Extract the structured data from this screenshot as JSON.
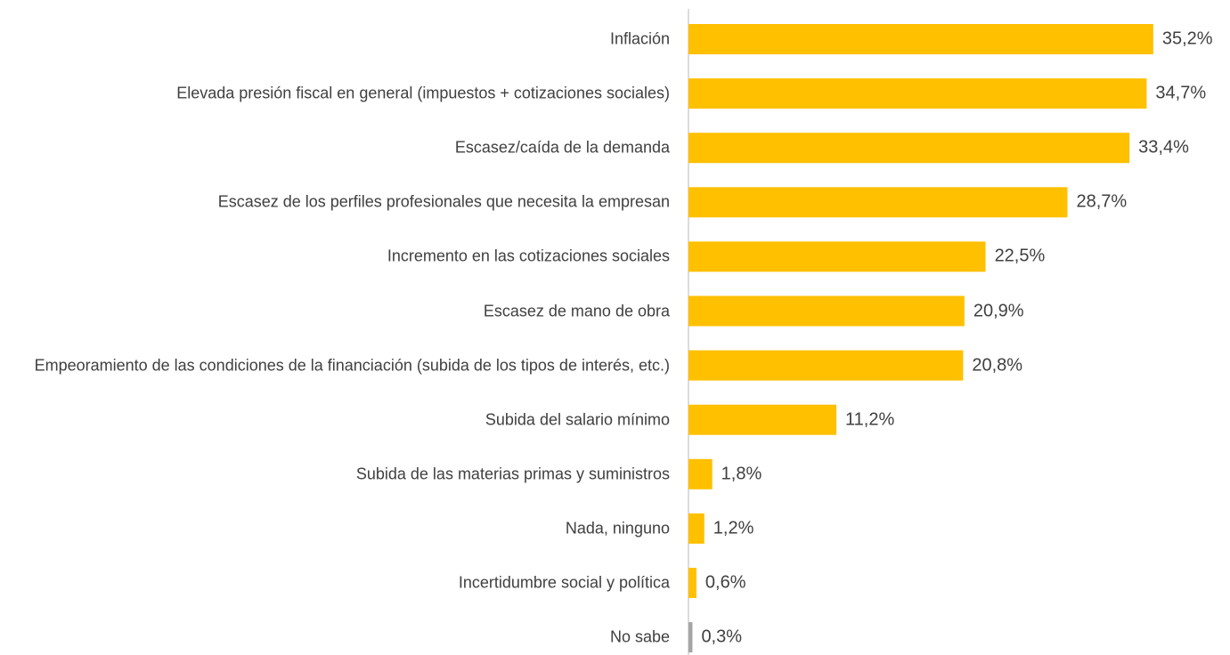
{
  "chart_data": {
    "type": "bar",
    "orientation": "horizontal",
    "categories": [
      "Inflación",
      "Elevada presión fiscal en general (impuestos + cotizaciones sociales)",
      "Escasez/caída de la demanda",
      "Escasez de los perfiles profesionales que necesita la empresan",
      "Incremento en las cotizaciones sociales",
      "Escasez de mano de obra",
      "Empeoramiento de las condiciones de la financiación (subida de los tipos de interés, etc.)",
      "Subida del salario mínimo",
      "Subida de las materias primas y suministros",
      "Nada, ninguno",
      "Incertidumbre social y política",
      "No sabe"
    ],
    "values": [
      35.2,
      34.7,
      33.4,
      28.7,
      22.5,
      20.9,
      20.8,
      11.2,
      1.8,
      1.2,
      0.6,
      0.3
    ],
    "value_labels": [
      "35,2%",
      "34,7%",
      "33,4%",
      "28,7%",
      "22,5%",
      "20,9%",
      "20,8%",
      "11,2%",
      "1,8%",
      "1,2%",
      "0,6%",
      "0,3%"
    ],
    "colors": [
      "#FFC000",
      "#FFC000",
      "#FFC000",
      "#FFC000",
      "#FFC000",
      "#FFC000",
      "#FFC000",
      "#FFC000",
      "#FFC000",
      "#FFC000",
      "#FFC000",
      "#A5A5A5"
    ],
    "xlim": [
      0,
      40
    ]
  }
}
